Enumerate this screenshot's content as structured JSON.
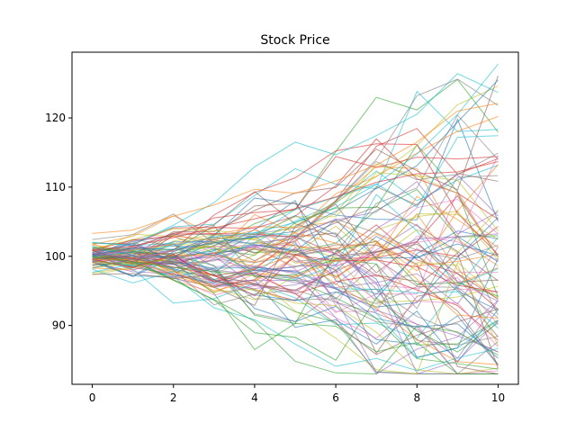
{
  "chart_data": {
    "type": "line",
    "title": "Stock Price",
    "xlabel": "",
    "ylabel": "",
    "xlim": [
      -0.5,
      10.5
    ],
    "ylim": [
      81.5,
      129.5
    ],
    "xticks": [
      0,
      2,
      4,
      6,
      8,
      10
    ],
    "yticks": [
      90,
      100,
      110,
      120
    ],
    "grid": false,
    "legend": "none",
    "x": [
      0,
      1,
      2,
      3,
      4,
      5,
      6,
      7,
      8,
      9,
      10
    ],
    "palette": [
      "#1f77b4",
      "#ff7f0e",
      "#2ca02c",
      "#d62728",
      "#9467bd",
      "#8c564b",
      "#e377c2",
      "#7f7f7f",
      "#bcbd22",
      "#17becf"
    ],
    "series_count": 100,
    "highlighted_series": [
      {
        "color": "#17becf",
        "values": [
          100.0,
          100.6,
          101.5,
          102.8,
          103.4,
          104.9,
          107.1,
          110.4,
          114.8,
          120.5,
          127.8
        ]
      },
      {
        "color": "#7f7f7f",
        "values": [
          100.2,
          101.0,
          100.7,
          102.5,
          103.2,
          104.1,
          108.0,
          114.0,
          123.2,
          125.6,
          121.8
        ]
      },
      {
        "color": "#bcbd22",
        "values": [
          99.8,
          100.5,
          101.8,
          102.7,
          102.5,
          104.4,
          107.8,
          111.5,
          116.0,
          121.9,
          124.6
        ]
      },
      {
        "color": "#1f77b4",
        "values": [
          100.3,
          101.2,
          101.0,
          101.9,
          102.8,
          103.6,
          106.5,
          109.8,
          113.1,
          119.4,
          125.5
        ]
      },
      {
        "color": "#8c564b",
        "values": [
          97.4,
          97.5,
          96.8,
          97.3,
          96.0,
          94.6,
          90.3,
          85.8,
          88.6,
          90.5,
          92.4
        ]
      },
      {
        "color": "#2ca02c",
        "values": [
          99.9,
          99.2,
          98.4,
          97.8,
          97.2,
          96.5,
          94.0,
          91.0,
          85.2,
          84.5,
          83.7
        ]
      },
      {
        "color": "#ff7f0e",
        "values": [
          103.3,
          103.8,
          105.8,
          107.4,
          109.7,
          109.1,
          110.9,
          113.2,
          116.5,
          121.0,
          122.1
        ]
      },
      {
        "color": "#9467bd",
        "values": [
          100.5,
          99.6,
          98.8,
          98.0,
          97.4,
          96.2,
          95.4,
          92.2,
          90.2,
          88.5,
          86.2
        ]
      },
      {
        "color": "#d62728",
        "values": [
          100.8,
          101.5,
          102.7,
          104.1,
          105.4,
          106.9,
          108.6,
          110.7,
          111.9,
          112.2,
          113.7
        ]
      }
    ]
  }
}
